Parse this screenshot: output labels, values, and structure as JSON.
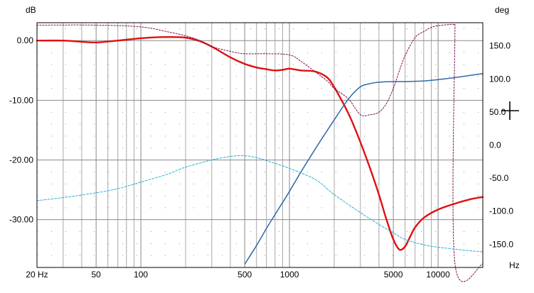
{
  "chart_data": {
    "type": "line",
    "x_scale": "log",
    "xlim": [
      20,
      20000
    ],
    "ylim_left": [
      -38,
      3
    ],
    "ylim_right": [
      -185,
      185
    ],
    "grid": true,
    "left_unit": "dB",
    "right_unit": "deg",
    "x_unit": "Hz",
    "x_ticks": [
      {
        "value": 20,
        "label": "20 Hz"
      },
      {
        "value": 50,
        "label": "50"
      },
      {
        "value": 100,
        "label": "100"
      },
      {
        "value": 500,
        "label": "500"
      },
      {
        "value": 1000,
        "label": "1000"
      },
      {
        "value": 5000,
        "label": "5000"
      },
      {
        "value": 10000,
        "label": "10000"
      }
    ],
    "left_ticks": [
      {
        "value": 0,
        "label": "0.00"
      },
      {
        "value": -10,
        "label": "-10.00"
      },
      {
        "value": -20,
        "label": "-20.00"
      },
      {
        "value": -30,
        "label": "-30.00"
      }
    ],
    "right_ticks": [
      {
        "value": 150,
        "label": "150.0"
      },
      {
        "value": 100,
        "label": "100.0"
      },
      {
        "value": 50,
        "label": "50.0"
      },
      {
        "value": 0,
        "label": "0.0"
      },
      {
        "value": -50,
        "label": "-50.0"
      },
      {
        "value": -100,
        "label": "-100.0"
      },
      {
        "value": -150,
        "label": "-150.0"
      }
    ],
    "series": [
      {
        "axis": "left",
        "color": "#e01010",
        "width": 2.4,
        "dash": "",
        "x": [
          20,
          30,
          40,
          50,
          70,
          100,
          150,
          200,
          250,
          300,
          400,
          500,
          600,
          700,
          800,
          900,
          1000,
          1200,
          1500,
          1800,
          2000,
          2300,
          2600,
          3000,
          3500,
          4000,
          4500,
          5000,
          5500,
          6000,
          6500,
          7000,
          8000,
          10000,
          13000,
          17000,
          20000
        ],
        "y": [
          0,
          0,
          -0.2,
          -0.3,
          0,
          0.4,
          0.6,
          0.5,
          -0.1,
          -1.0,
          -2.8,
          -3.9,
          -4.5,
          -4.8,
          -5.0,
          -4.9,
          -4.7,
          -5.0,
          -5.2,
          -6.2,
          -7.8,
          -10.5,
          -13.2,
          -17.0,
          -21.5,
          -25.8,
          -30.0,
          -33.3,
          -35.0,
          -34.5,
          -32.8,
          -31.3,
          -29.7,
          -28.3,
          -27.3,
          -26.5,
          -26.2
        ]
      },
      {
        "axis": "left",
        "color": "#7a1050",
        "width": 1,
        "dash": "2,2",
        "x": [
          20,
          50,
          100,
          150,
          200,
          250,
          300,
          400,
          500,
          700,
          1000,
          1200,
          1500,
          1800,
          2000,
          2500,
          3000,
          3500,
          4000,
          4500,
          5000,
          5500,
          6000,
          7000,
          8000,
          9000,
          10000,
          12000,
          13000
        ],
        "y": [
          2.6,
          2.6,
          2.3,
          1.5,
          0.8,
          0,
          -1.0,
          -1.8,
          -2.2,
          -2.2,
          -2.4,
          -3.5,
          -5.3,
          -6.8,
          -8.0,
          -9.8,
          -12.4,
          -12.4,
          -12.0,
          -10.5,
          -8.0,
          -5.0,
          -2.5,
          0.5,
          1.5,
          2.2,
          2.5,
          2.7,
          2.7
        ]
      },
      {
        "axis": "left",
        "color": "#7a1050",
        "width": 1,
        "dash": "2,2",
        "x": [
          20,
          20
        ],
        "y": [
          2.6,
          -1.0
        ]
      },
      {
        "axis": "left",
        "color": "#7a1050",
        "width": 1,
        "dash": "2,2",
        "x": [
          13000,
          13000,
          20000
        ],
        "y": [
          2.7,
          -37.4,
          -37.4
        ]
      },
      {
        "axis": "right",
        "color": "#2e6aa8",
        "width": 1.5,
        "dash": "",
        "x": [
          500,
          600,
          700,
          800,
          1000,
          1200,
          1500,
          2000,
          2500,
          3000,
          3500,
          4000,
          5000,
          6000,
          8000,
          10000,
          12000,
          15000,
          20000
        ],
        "y": [
          -180,
          -152,
          -126,
          -105,
          -70,
          -40,
          -5,
          38,
          70,
          88,
          93,
          95,
          96,
          96,
          97,
          99,
          101,
          104,
          108
        ]
      },
      {
        "axis": "left",
        "color": "#2ab0d8",
        "width": 1,
        "dash": "3,2",
        "x": [
          20,
          30,
          50,
          70,
          100,
          150,
          200,
          300,
          400,
          500,
          600,
          700,
          1000,
          1500,
          2000,
          3000,
          4000,
          5000,
          6000,
          8000,
          10000,
          15000,
          20000
        ],
        "y": [
          -26.8,
          -26.3,
          -25.5,
          -24.8,
          -23.7,
          -22.4,
          -21.2,
          -20.0,
          -19.4,
          -19.3,
          -19.6,
          -20.1,
          -21.4,
          -23.3,
          -25.8,
          -28.8,
          -30.8,
          -32.2,
          -33.3,
          -34.2,
          -34.6,
          -35.1,
          -35.4
        ]
      }
    ]
  }
}
